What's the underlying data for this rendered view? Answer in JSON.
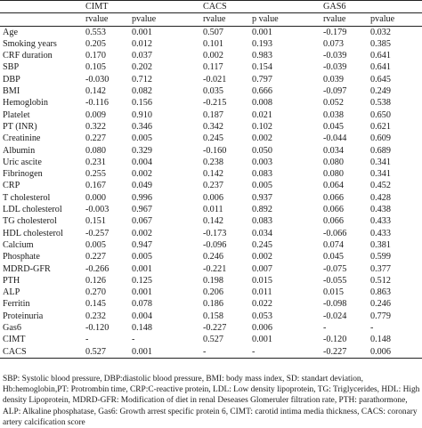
{
  "table": {
    "groups": [
      "CIMT",
      "CACS",
      "GAS6"
    ],
    "subheaders": [
      "rvalue",
      "pvalue",
      "rvalue",
      "p value",
      "rvalue",
      "pvalue"
    ],
    "rows": [
      {
        "label": "Age",
        "cells": [
          "0.553",
          "0.001",
          "0.507",
          "0.001",
          "-0.179",
          "0.032"
        ]
      },
      {
        "label": "Smoking years",
        "cells": [
          "0.205",
          "0.012",
          "0.101",
          "0.193",
          "0.073",
          "0.385"
        ]
      },
      {
        "label": "CRF duration",
        "cells": [
          "0.170",
          "0.037",
          "0.002",
          "0.983",
          "-0.039",
          "0.641"
        ]
      },
      {
        "label": "SBP",
        "cells": [
          "0.105",
          "0.202",
          "0.117",
          "0.154",
          "-0.039",
          "0.641"
        ]
      },
      {
        "label": "DBP",
        "cells": [
          "-0.030",
          "0.712",
          "-0.021",
          "0.797",
          "0.039",
          "0.645"
        ]
      },
      {
        "label": "BMI",
        "cells": [
          "0.142",
          "0.082",
          "0.035",
          "0.666",
          "-0.097",
          "0.249"
        ]
      },
      {
        "label": "Hemoglobin",
        "cells": [
          "-0.116",
          "0.156",
          "-0.215",
          "0.008",
          "0.052",
          "0.538"
        ]
      },
      {
        "label": "Platelet",
        "cells": [
          "0.009",
          "0.910",
          "0.187",
          "0.021",
          "0.038",
          "0.650"
        ]
      },
      {
        "label": "PT (INR)",
        "cells": [
          "0.322",
          "0.346",
          "0.342",
          "0.102",
          "0.045",
          "0.621"
        ]
      },
      {
        "label": "Creatinine",
        "cells": [
          "0.227",
          "0.005",
          "0.245",
          "0.002",
          "-0.044",
          "0.609"
        ]
      },
      {
        "label": "Albumin",
        "cells": [
          "0.080",
          "0.329",
          "-0.160",
          "0.050",
          "0.034",
          "0.689"
        ]
      },
      {
        "label": "Uric ascite",
        "cells": [
          "0.231",
          "0.004",
          "0.238",
          "0.003",
          "0.080",
          "0.341"
        ]
      },
      {
        "label": "Fibrinogen",
        "cells": [
          "0.255",
          "0.002",
          "0.142",
          "0.083",
          "0.080",
          "0.341"
        ]
      },
      {
        "label": "CRP",
        "cells": [
          "0.167",
          "0.049",
          "0.237",
          "0.005",
          "0.064",
          "0.452"
        ]
      },
      {
        "label": "T cholesterol",
        "cells": [
          "0.000",
          "0.996",
          "0.006",
          "0.937",
          "0.066",
          "0.428"
        ]
      },
      {
        "label": "LDL cholesterol",
        "cells": [
          "-0.003",
          "0.967",
          "0.011",
          "0.892",
          "0.066",
          "0.438"
        ]
      },
      {
        "label": "TG cholesterol",
        "cells": [
          "0.151",
          "0.067",
          "0.142",
          "0.083",
          "0.066",
          "0.433"
        ]
      },
      {
        "label": "HDL cholesterol",
        "cells": [
          "-0.257",
          "0.002",
          "-0.173",
          "0.034",
          "-0.066",
          "0.433"
        ]
      },
      {
        "label": "Calcium",
        "cells": [
          "0.005",
          "0.947",
          "-0.096",
          "0.245",
          "0.074",
          "0.381"
        ]
      },
      {
        "label": "Phosphate",
        "cells": [
          "0.227",
          "0.005",
          "0.246",
          "0.002",
          "0.045",
          "0.599"
        ]
      },
      {
        "label": "MDRD-GFR",
        "cells": [
          "-0.266",
          "0.001",
          "-0.221",
          "0.007",
          "-0.075",
          "0.377"
        ]
      },
      {
        "label": "PTH",
        "cells": [
          "0.126",
          "0.125",
          "0.198",
          "0.015",
          "-0.055",
          "0.512"
        ]
      },
      {
        "label": "ALP",
        "cells": [
          "0.270",
          "0.001",
          "0.206",
          "0.011",
          "0.015",
          "0.863"
        ]
      },
      {
        "label": "Ferritin",
        "cells": [
          "0.145",
          "0.078",
          "0.186",
          "0.022",
          "-0.098",
          "0.246"
        ]
      },
      {
        "label": "Proteinuria",
        "cells": [
          "0.232",
          "0.004",
          "0.158",
          "0.053",
          "-0.024",
          "0.779"
        ]
      },
      {
        "label": "Gas6",
        "cells": [
          "-0.120",
          "0.148",
          "-0.227",
          "0.006",
          "-",
          "-"
        ]
      },
      {
        "label": "CIMT",
        "cells": [
          "-",
          "-",
          "0.527",
          "0.001",
          "-0.120",
          "0.148"
        ]
      },
      {
        "label": "CACS",
        "cells": [
          "0.527",
          "0.001",
          "-",
          "-",
          "-0.227",
          "0.006"
        ]
      }
    ]
  },
  "footnote": "SBP: Systolic blood pressure, DBP:diastolic blood pressure, BMI: body mass index, SD: standart deviation, Hb:hemoglobin,PT: Protrombin time, CRP:C-reactive protein, LDL: Low density lipoprotein, TG: Triglycerides, HDL: High density Lipoprotein, MDRD-GFR: Modification of diet in renal Deseases Glomeruler filtration rate, PTH: parathormone, ALP: Alkaline phosphatase, Gas6: Growth arrest specific protein 6, CIMT: carotid intima media thickness, CACS: coronary artery calcification score"
}
